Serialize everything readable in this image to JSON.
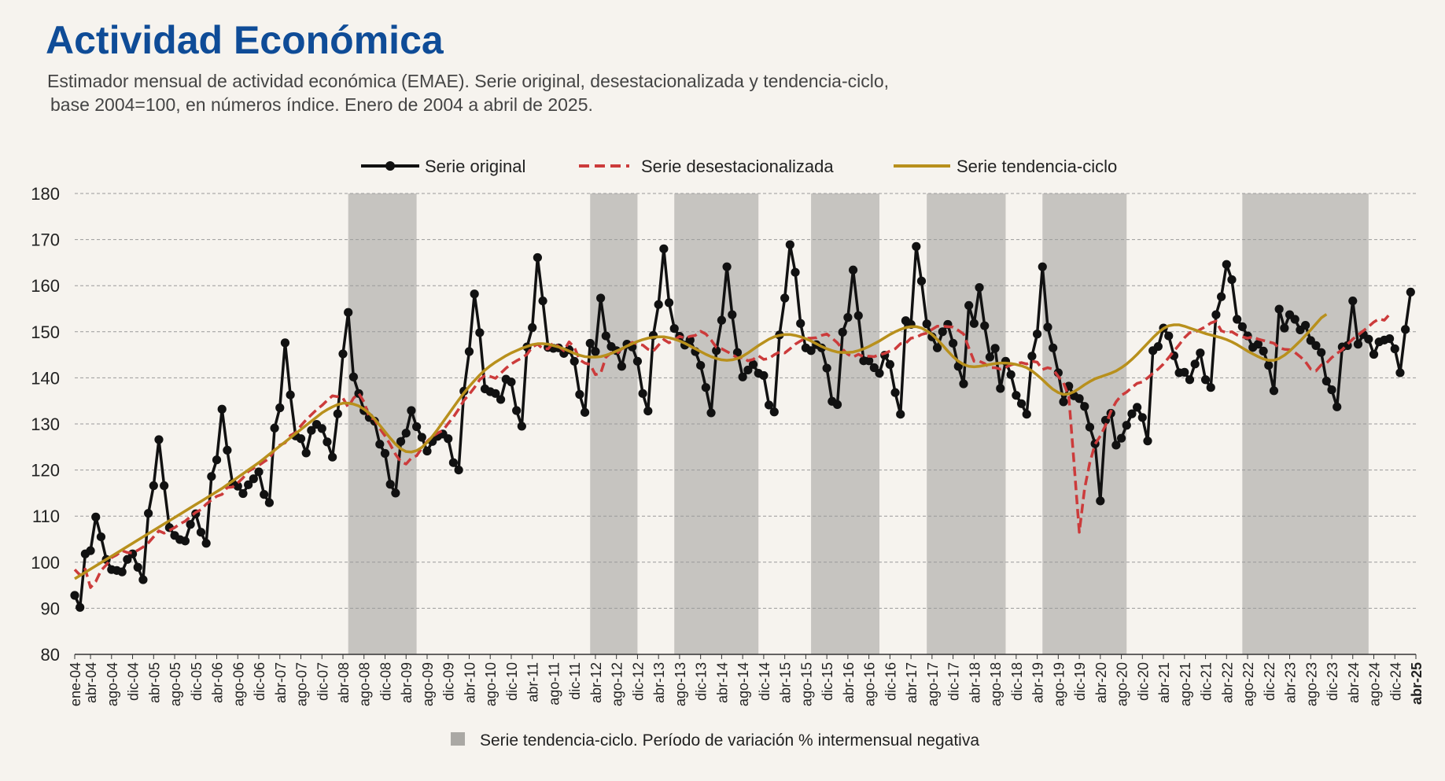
{
  "title": "Actividad Económica",
  "subtitle_line1": "Estimador mensual de actividad económica (EMAE). Serie original, desestacionalizada y tendencia-ciclo,",
  "subtitle_line2": "base 2004=100, en números índice. Enero de 2004 a abril de 2025.",
  "colors": {
    "title": "#0f4c97",
    "original": "#111111",
    "desest": "#cc3b3b",
    "tendencia": "#b8901c",
    "shade": "#c6c4c0"
  },
  "chart_data": {
    "type": "line",
    "ylim": [
      80,
      180
    ],
    "yticks": [
      80,
      90,
      100,
      110,
      120,
      130,
      140,
      150,
      160,
      170,
      180
    ],
    "grid": "horizontal dashed",
    "legend_position": "top",
    "legend": [
      "Serie original",
      "Serie desestacionalizada",
      "Serie tendencia-ciclo"
    ],
    "shade_legend": "Serie tendencia-ciclo. Período de variación % intermensual negativa",
    "x_start": "ene-04",
    "x_end": "abr-25",
    "tick_labels": [
      "ene-04",
      "abr-04",
      "ago-04",
      "dic-04",
      "abr-05",
      "ago-05",
      "dic-05",
      "abr-06",
      "ago-06",
      "dic-06",
      "abr-07",
      "ago-07",
      "dic-07",
      "abr-08",
      "ago-08",
      "dic-08",
      "abr-09",
      "ago-09",
      "dic-09",
      "abr-10",
      "ago-10",
      "dic-10",
      "abr-11",
      "ago-11",
      "dic-11",
      "abr-12",
      "ago-12",
      "dic-12",
      "abr-13",
      "ago-13",
      "dic-13",
      "abr-14",
      "ago-14",
      "dic-14",
      "abr-15",
      "ago-15",
      "dic-15",
      "abr-16",
      "ago-16",
      "dic-16",
      "abr-17",
      "ago-17",
      "dic-17",
      "abr-18",
      "ago-18",
      "dic-18",
      "abr-19",
      "ago-19",
      "dic-19",
      "abr-20",
      "ago-20",
      "dic-20",
      "abr-21",
      "ago-21",
      "dic-21",
      "abr-22",
      "ago-22",
      "dic-22",
      "abr-23",
      "ago-23",
      "dic-23",
      "abr-24",
      "ago-24",
      "dic-24",
      "abr-25"
    ],
    "shaded_periods": [
      [
        "may-08",
        "jun-09"
      ],
      [
        "mar-12",
        "dic-12"
      ],
      [
        "jul-13",
        "nov-14"
      ],
      [
        "sep-15",
        "oct-16"
      ],
      [
        "jul-17",
        "oct-18"
      ],
      [
        "may-19",
        "sep-20"
      ],
      [
        "jul-22",
        "jul-24"
      ]
    ],
    "series": [
      {
        "name": "Serie original",
        "values": [
          92.8,
          90.2,
          101.8,
          102.5,
          109.8,
          105.5,
          100.6,
          98.4,
          98.2,
          97.9,
          100.6,
          101.8,
          98.9,
          96.2,
          110.6,
          116.6,
          126.6,
          116.6,
          107.5,
          105.8,
          104.9,
          104.6,
          108.2,
          110.5,
          106.5,
          104.1,
          118.6,
          122.2,
          133.2,
          124.3,
          117.1,
          116.5,
          114.9,
          116.8,
          118.1,
          119.6,
          114.7,
          112.9,
          129.1,
          133.5,
          147.6,
          136.3,
          127.4,
          126.8,
          123.7,
          128.6,
          129.9,
          129.0,
          126.1,
          122.8,
          132.2,
          145.2,
          154.2,
          140.2,
          136.6,
          132.9,
          131.4,
          130.6,
          125.6,
          123.6,
          116.9,
          115.0,
          126.2,
          128.0,
          132.9,
          129.4,
          127.1,
          124.1,
          126.2,
          127.3,
          127.8,
          126.8,
          121.6,
          120.0,
          137.1,
          145.7,
          158.2,
          149.8,
          137.6,
          137.0,
          136.6,
          135.3,
          139.7,
          139.1,
          132.9,
          129.5,
          146.7,
          150.9,
          166.1,
          156.7,
          146.6,
          146.4,
          146.5,
          145.3,
          146.1,
          143.6,
          136.4,
          132.5,
          147.5,
          145.7,
          157.3,
          149.1,
          146.8,
          145.9,
          142.5,
          147.3,
          146.7,
          143.6,
          136.6,
          132.8,
          149.2,
          155.9,
          168.0,
          156.3,
          150.7,
          149.0,
          147.1,
          148.2,
          145.7,
          142.7,
          137.9,
          132.4,
          145.9,
          152.5,
          164.1,
          153.7,
          145.5,
          140.2,
          141.7,
          142.9,
          141.0,
          140.5,
          134.1,
          132.6,
          149.3,
          157.3,
          168.9,
          162.9,
          151.8,
          146.5,
          145.9,
          147.2,
          146.5,
          142.1,
          134.9,
          134.2,
          149.9,
          153.1,
          163.4,
          153.5,
          143.7,
          143.7,
          142.2,
          141.0,
          144.9,
          142.9,
          136.8,
          132.1,
          152.4,
          151.6,
          168.5,
          161.0,
          151.7,
          148.9,
          146.5,
          150.0,
          151.6,
          147.5,
          142.5,
          138.7,
          155.7,
          151.8,
          159.6,
          151.3,
          144.5,
          146.4,
          137.7,
          143.6,
          140.7,
          136.2,
          134.4,
          132.1,
          144.7,
          149.5,
          164.1,
          151.0,
          146.5,
          141.1,
          134.8,
          138.2,
          136.1,
          135.5,
          133.8,
          129.3,
          125.7,
          113.3,
          130.8,
          132.3,
          125.4,
          126.9,
          129.7,
          132.2,
          133.6,
          131.4,
          126.3,
          145.9,
          146.8,
          150.8,
          149.1,
          144.8,
          141.1,
          141.2,
          139.6,
          143.0,
          145.4,
          139.6,
          137.9,
          153.7,
          157.6,
          164.6,
          161.3,
          152.7,
          151.1,
          149.1,
          146.6,
          147.3,
          145.8,
          142.7,
          137.2,
          154.9,
          150.8,
          153.7,
          152.7,
          150.4,
          151.4,
          148.1,
          147.0,
          145.5,
          139.3,
          137.4,
          133.7,
          146.7,
          147.0,
          156.7,
          147.3,
          149.4,
          148.4,
          145.1,
          147.8,
          148.2,
          148.5,
          146.3,
          141.1,
          150.5,
          158.6
        ]
      },
      {
        "name": "Serie desestacionalizada",
        "values": [
          98.4,
          97.2,
          98.5,
          94.5,
          95.8,
          98.2,
          99.4,
          101.0,
          101.6,
          102.5,
          102.1,
          102.0,
          102.6,
          103.3,
          104.2,
          105.5,
          106.8,
          106.3,
          106.9,
          107.5,
          108.3,
          108.9,
          109.9,
          110.8,
          111.4,
          112.6,
          113.5,
          114.3,
          114.7,
          116.2,
          116.3,
          117.2,
          118.3,
          119.7,
          120.4,
          121.0,
          121.8,
          122.5,
          124.4,
          125.4,
          125.9,
          127.5,
          128.1,
          129.6,
          130.9,
          132.0,
          133.1,
          134.0,
          135.1,
          136.1,
          135.9,
          135.6,
          133.6,
          135.6,
          136.6,
          134.8,
          131.4,
          131.0,
          129.0,
          127.4,
          125.5,
          123.4,
          121.8,
          121.3,
          122.6,
          123.1,
          124.7,
          126.2,
          127.3,
          128.0,
          128.6,
          130.1,
          131.5,
          133.2,
          135.1,
          136.4,
          137.9,
          139.6,
          140.5,
          140.3,
          139.9,
          141.0,
          142.1,
          143.0,
          143.7,
          144.3,
          145.1,
          146.7,
          147.3,
          146.3,
          146.3,
          147.6,
          146.8,
          145.9,
          147.8,
          146.6,
          143.9,
          143.2,
          142.9,
          140.7,
          141.0,
          144.5,
          145.4,
          145.2,
          146.3,
          146.7,
          147.7,
          147.3,
          147.1,
          146.2,
          145.8,
          147.1,
          148.3,
          147.6,
          148.2,
          149.0,
          148.6,
          149.0,
          149.2,
          150.1,
          149.5,
          148.2,
          146.6,
          146.3,
          145.7,
          145.1,
          144.3,
          144.4,
          143.7,
          144.0,
          144.8,
          144.0,
          144.2,
          145.0,
          145.6,
          145.4,
          146.3,
          147.3,
          148.0,
          148.6,
          148.6,
          148.7,
          149.2,
          149.5,
          148.6,
          147.6,
          146.2,
          145.1,
          144.5,
          145.1,
          144.6,
          144.7,
          144.6,
          145.0,
          145.3,
          145.8,
          146.3,
          147.4,
          147.5,
          148.6,
          148.8,
          149.4,
          149.7,
          150.5,
          151.2,
          151.2,
          151.1,
          151.0,
          150.3,
          149.5,
          146.5,
          143.6,
          143.6,
          143.1,
          142.2,
          142.2,
          141.9,
          142.3,
          142.8,
          143.1,
          143.3,
          143.0,
          143.6,
          143.4,
          141.8,
          142.2,
          141.9,
          140.3,
          138.9,
          136.0,
          121.5,
          106.5,
          115.9,
          121.6,
          125.6,
          127.4,
          129.7,
          132.7,
          134.8,
          136.2,
          136.9,
          137.9,
          138.8,
          139.1,
          140.0,
          141.0,
          141.9,
          143.0,
          144.4,
          145.8,
          147.2,
          148.7,
          149.8,
          149.9,
          150.5,
          151.1,
          151.9,
          152.3,
          150.2,
          149.8,
          150.0,
          149.3,
          148.9,
          148.6,
          148.9,
          148.4,
          148.1,
          147.8,
          147.5,
          146.5,
          146.2,
          146.1,
          145.5,
          144.6,
          143.5,
          141.9,
          141.5,
          142.8,
          143.2,
          144.4,
          145.3,
          146.1,
          147.3,
          148.4,
          149.3,
          150.2,
          151.1,
          152.1,
          152.8,
          152.5,
          153.8
        ]
      },
      {
        "name": "Serie tendencia-ciclo",
        "values": [
          96.4,
          97.1,
          97.8,
          98.5,
          99.2,
          99.9,
          100.6,
          101.3,
          102.0,
          102.7,
          103.4,
          104.1,
          104.8,
          105.5,
          106.2,
          106.9,
          107.6,
          108.3,
          109.0,
          109.7,
          110.4,
          111.1,
          111.8,
          112.5,
          113.2,
          113.9,
          114.6,
          115.3,
          116.0,
          116.8,
          117.6,
          118.4,
          119.2,
          120.0,
          120.8,
          121.6,
          122.5,
          123.4,
          124.3,
          125.2,
          126.1,
          127.0,
          127.9,
          128.8,
          129.7,
          130.6,
          131.5,
          132.4,
          133.1,
          133.7,
          134.2,
          134.5,
          134.5,
          134.3,
          133.9,
          133.2,
          132.3,
          131.1,
          129.7,
          128.3,
          126.9,
          125.6,
          124.6,
          124.0,
          123.9,
          124.2,
          124.9,
          126.0,
          127.3,
          128.8,
          130.4,
          132.0,
          133.6,
          135.2,
          136.7,
          138.1,
          139.4,
          140.6,
          141.7,
          142.6,
          143.4,
          144.1,
          144.8,
          145.4,
          145.9,
          146.4,
          146.8,
          147.2,
          147.4,
          147.4,
          147.3,
          147.0,
          146.7,
          146.3,
          145.8,
          145.3,
          144.9,
          144.6,
          144.5,
          144.5,
          144.6,
          144.9,
          145.3,
          145.8,
          146.3,
          146.9,
          147.4,
          147.9,
          148.3,
          148.6,
          148.8,
          148.9,
          148.9,
          148.7,
          148.4,
          148.0,
          147.5,
          146.9,
          146.3,
          145.7,
          145.1,
          144.6,
          144.2,
          143.9,
          143.8,
          143.9,
          144.2,
          144.7,
          145.4,
          146.2,
          147.0,
          147.7,
          148.4,
          148.9,
          149.2,
          149.4,
          149.4,
          149.2,
          148.9,
          148.5,
          148.0,
          147.4,
          146.8,
          146.3,
          145.9,
          145.6,
          145.5,
          145.5,
          145.6,
          145.9,
          146.3,
          146.8,
          147.4,
          148.0,
          148.7,
          149.4,
          150.0,
          150.5,
          150.9,
          151.1,
          151.1,
          150.8,
          150.2,
          149.4,
          148.3,
          147.1,
          145.8,
          144.6,
          143.6,
          142.9,
          142.5,
          142.4,
          142.5,
          142.7,
          142.9,
          143.1,
          143.2,
          143.2,
          143.1,
          142.9,
          142.6,
          142.2,
          141.5,
          140.6,
          139.6,
          138.5,
          137.5,
          136.8,
          136.4,
          136.5,
          137.0,
          137.7,
          138.5,
          139.2,
          139.8,
          140.2,
          140.6,
          141.0,
          141.5,
          142.2,
          143.0,
          144.0,
          145.1,
          146.3,
          147.5,
          148.7,
          149.8,
          150.7,
          151.3,
          151.5,
          151.5,
          151.2,
          150.8,
          150.4,
          150.0,
          149.6,
          149.3,
          149.0,
          148.7,
          148.3,
          147.8,
          147.2,
          146.5,
          145.8,
          145.2,
          144.6,
          144.1,
          143.8,
          143.8,
          144.2,
          144.9,
          145.8,
          146.9,
          148.0,
          149.2,
          150.4,
          151.7,
          153.0,
          153.8
        ]
      }
    ]
  }
}
